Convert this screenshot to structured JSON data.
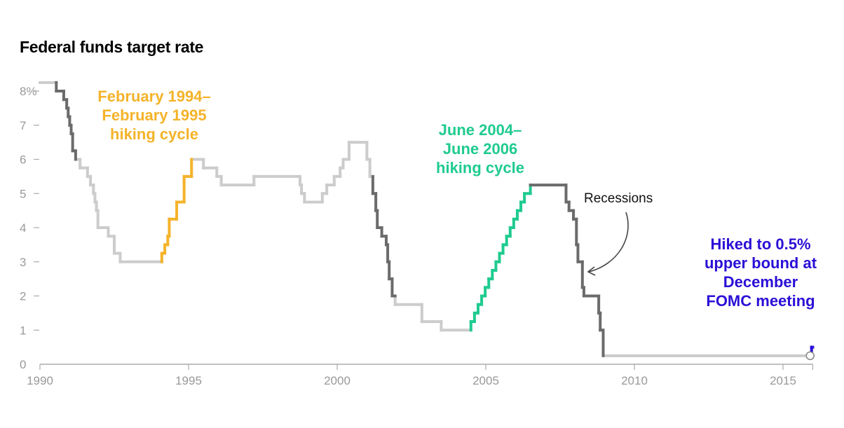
{
  "chart_data": {
    "type": "line",
    "title": "Federal funds target rate",
    "xlabel": "",
    "ylabel": "",
    "xlim": [
      1990,
      2016
    ],
    "ylim": [
      0,
      8.25
    ],
    "x_ticks": [
      1990,
      1995,
      2000,
      2005,
      2010,
      2015
    ],
    "x_tick_labels": [
      "1990",
      "1995",
      "2000",
      "2005",
      "2010",
      "2015"
    ],
    "y_ticks": [
      0,
      1,
      2,
      3,
      4,
      5,
      6,
      7,
      8
    ],
    "y_tick_labels": [
      "0",
      "1",
      "2",
      "3",
      "4",
      "5",
      "6",
      "7",
      "8%"
    ],
    "step_series": {
      "name": "Federal funds target rate (%)",
      "x": [
        1990.0,
        1990.55,
        1990.8,
        1990.9,
        1990.95,
        1991.0,
        1991.05,
        1991.1,
        1991.2,
        1991.35,
        1991.6,
        1991.7,
        1991.8,
        1991.85,
        1991.9,
        1991.95,
        1992.3,
        1992.5,
        1992.7,
        1994.1,
        1994.2,
        1994.3,
        1994.35,
        1994.6,
        1994.85,
        1995.1,
        1995.5,
        1995.95,
        1996.1,
        1997.2,
        1998.75,
        1998.8,
        1998.9,
        1999.5,
        1999.65,
        1999.9,
        2000.1,
        2000.2,
        2000.4,
        2001.0,
        2001.1,
        2001.2,
        2001.3,
        2001.35,
        2001.5,
        2001.65,
        2001.7,
        2001.75,
        2001.85,
        2001.95,
        2002.85,
        2003.5,
        2004.5,
        2004.62,
        2004.74,
        2004.86,
        2004.98,
        2005.1,
        2005.22,
        2005.34,
        2005.46,
        2005.58,
        2005.7,
        2005.82,
        2005.94,
        2006.06,
        2006.18,
        2006.3,
        2006.5,
        2007.7,
        2007.8,
        2007.95,
        2008.05,
        2008.1,
        2008.25,
        2008.3,
        2008.8,
        2008.85,
        2008.95,
        2015.96,
        2016.0
      ],
      "y": [
        8.25,
        8.0,
        7.75,
        7.5,
        7.25,
        7.0,
        6.75,
        6.25,
        6.0,
        5.75,
        5.5,
        5.25,
        5.0,
        4.75,
        4.5,
        4.0,
        3.75,
        3.25,
        3.0,
        3.25,
        3.5,
        3.75,
        4.25,
        4.75,
        5.5,
        6.0,
        5.75,
        5.5,
        5.25,
        5.5,
        5.25,
        5.0,
        4.75,
        5.0,
        5.25,
        5.5,
        5.75,
        6.0,
        6.5,
        6.0,
        5.5,
        5.0,
        4.5,
        4.0,
        3.75,
        3.5,
        3.0,
        2.5,
        2.0,
        1.75,
        1.25,
        1.0,
        1.25,
        1.5,
        1.75,
        2.0,
        2.25,
        2.5,
        2.75,
        3.0,
        3.25,
        3.5,
        3.75,
        4.0,
        4.25,
        4.5,
        4.75,
        5.0,
        5.25,
        4.75,
        4.5,
        4.25,
        3.5,
        3.0,
        2.25,
        2.0,
        1.5,
        1.0,
        0.25,
        0.5,
        0.5
      ]
    },
    "highlight_periods": [
      {
        "name": "Recessions",
        "start": 1990.55,
        "end": 1991.25,
        "color": "#6b6b6b"
      },
      {
        "name": "Recessions",
        "start": 2001.2,
        "end": 2001.9,
        "color": "#6b6b6b"
      },
      {
        "name": "Recessions",
        "start": 2007.05,
        "end": 2009.5,
        "color": "#6b6b6b"
      },
      {
        "name": "February 1994–February 1995 hiking cycle",
        "start": 1994.1,
        "end": 1995.1,
        "color": "#f4b32a"
      },
      {
        "name": "June 2004–June 2006 hiking cycle",
        "start": 2004.5,
        "end": 2006.5,
        "color": "#1fcb8f"
      },
      {
        "name": "December FOMC hike",
        "start": 2015.96,
        "end": 2016.0,
        "color": "#2a0fd6"
      }
    ],
    "base_color": "#cccccc",
    "annotations": {
      "hike94": "February 1994–\nFebruary 1995\nhiking cycle",
      "hike04": "June 2004–\nJune 2006\nhiking cycle",
      "recessions": "Recessions",
      "final": "Hiked to 0.5%\nupper bound at\nDecember\nFOMC meeting"
    }
  }
}
